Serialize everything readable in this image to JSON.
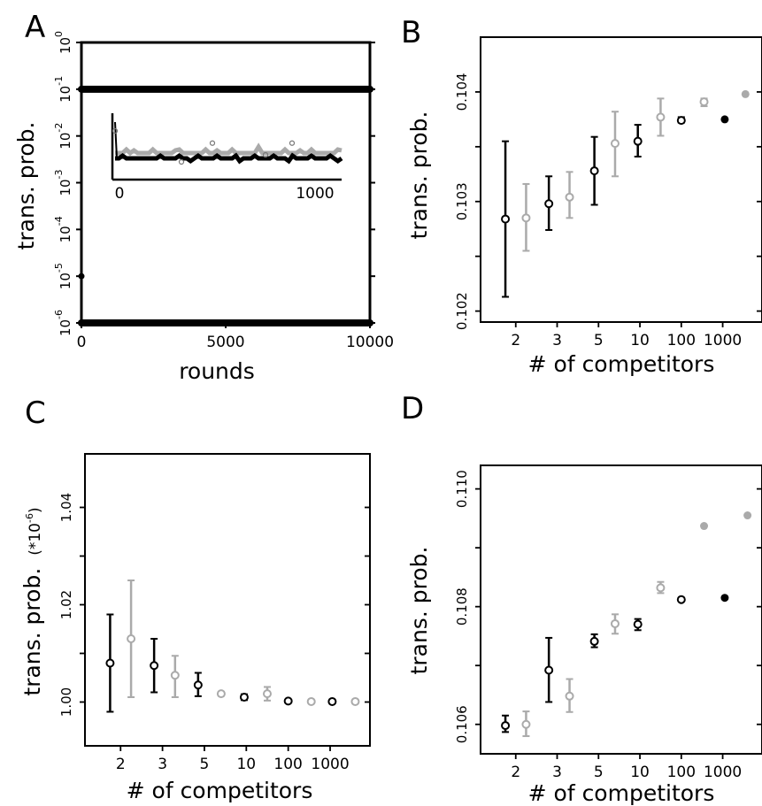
{
  "chart_data": [
    {
      "panel": "A",
      "type": "scatter",
      "xlabel": "rounds",
      "ylabel": "trans. prob.",
      "x_ticks": [
        "0",
        "5000",
        "10000"
      ],
      "xlim": [
        0,
        10000
      ],
      "y_scale": "log",
      "ylim": [
        1e-06,
        1
      ],
      "y_ticks": [
        {
          "base": "10",
          "exp": "0"
        },
        {
          "base": "10",
          "exp": "-1"
        },
        {
          "base": "10",
          "exp": "-2"
        },
        {
          "base": "10",
          "exp": "-3"
        },
        {
          "base": "10",
          "exp": "-4"
        },
        {
          "base": "10",
          "exp": "-5"
        },
        {
          "base": "10",
          "exp": "-6"
        }
      ],
      "series": [
        {
          "color": "#000000",
          "y_level": 0.1,
          "x_range": [
            0,
            10000
          ]
        },
        {
          "color": "#000000",
          "y_level": 1e-06,
          "x_range": [
            0,
            10000
          ]
        },
        {
          "color": "#000000",
          "points": [
            [
              0,
              1e-05
            ]
          ]
        }
      ],
      "inset": {
        "x_ticks": [
          "0",
          "1000"
        ],
        "xlim": [
          0,
          1000
        ],
        "gray_level": 0.4,
        "black_level": 0.32
      }
    },
    {
      "panel": "B",
      "type": "scatter",
      "xlabel": "# of competitors",
      "ylabel": "trans. prob.",
      "categories": [
        "",
        "2",
        "3",
        "",
        "5",
        "10",
        "",
        "100",
        "1000"
      ],
      "x_positions": [
        1.75,
        2.25,
        2.75,
        3.25,
        3.75,
        4.25,
        4.75,
        5.25,
        5.75
      ],
      "x_ticks": [
        {
          "pos": 2,
          "label": "2"
        },
        {
          "pos": 3,
          "label": "3"
        },
        {
          "pos": 4,
          "label": "5"
        },
        {
          "pos": 5,
          "label": "10"
        },
        {
          "pos": 6,
          "label": "100"
        },
        {
          "pos": 7,
          "label": "1000"
        }
      ],
      "ylim": [
        0.1019,
        0.1045
      ],
      "y_ticks": [
        "0.102",
        "0.103",
        "0.104"
      ],
      "y_tick_values": [
        0.102,
        0.1025,
        0.103,
        0.1035,
        0.104
      ],
      "points": [
        {
          "x": 1.8,
          "y": 0.10284,
          "lo": 0.10213,
          "hi": 0.10355,
          "color": "#000000",
          "open": true
        },
        {
          "x": 2.3,
          "y": 0.10285,
          "lo": 0.10255,
          "hi": 0.10316,
          "color": "#aaaaaa",
          "open": true
        },
        {
          "x": 2.85,
          "y": 0.10298,
          "lo": 0.10274,
          "hi": 0.10323,
          "color": "#000000",
          "open": true
        },
        {
          "x": 3.35,
          "y": 0.10304,
          "lo": 0.10285,
          "hi": 0.10327,
          "color": "#aaaaaa",
          "open": true
        },
        {
          "x": 3.95,
          "y": 0.10328,
          "lo": 0.10297,
          "hi": 0.10359,
          "color": "#000000",
          "open": true
        },
        {
          "x": 4.45,
          "y": 0.10353,
          "lo": 0.10323,
          "hi": 0.10382,
          "color": "#aaaaaa",
          "open": true
        },
        {
          "x": 5.0,
          "y": 0.10355,
          "lo": 0.10341,
          "hi": 0.1037,
          "color": "#000000",
          "open": true
        },
        {
          "x": 5.55,
          "y": 0.10377,
          "lo": 0.1036,
          "hi": 0.10394,
          "color": "#aaaaaa",
          "open": true
        },
        {
          "x": 6.05,
          "y": 0.10374,
          "lo": 0.10372,
          "hi": 0.10377,
          "color": "#000000",
          "open": true
        },
        {
          "x": 6.6,
          "y": 0.10391,
          "lo": 0.10387,
          "hi": 0.10394,
          "color": "#aaaaaa",
          "open": true
        },
        {
          "x": 7.1,
          "y": 0.10375,
          "lo": 0.10375,
          "hi": 0.10375,
          "color": "#000000",
          "open": false
        },
        {
          "x": 7.6,
          "y": 0.10398,
          "lo": 0.10398,
          "hi": 0.10398,
          "color": "#aaaaaa",
          "open": false
        }
      ]
    },
    {
      "panel": "C",
      "type": "scatter",
      "xlabel": "# of competitors",
      "ylabel": "trans. prob.",
      "ylabel_suffix": {
        "open": "(",
        "mult": "*10",
        "exp": "-6",
        "close": ")"
      },
      "x_ticks": [
        {
          "pos": 2,
          "label": "2"
        },
        {
          "pos": 3,
          "label": "3"
        },
        {
          "pos": 4,
          "label": "5"
        },
        {
          "pos": 5,
          "label": "10"
        },
        {
          "pos": 6,
          "label": "100"
        },
        {
          "pos": 7,
          "label": "1000"
        }
      ],
      "ylim": [
        0.991,
        1.051
      ],
      "y_ticks": [
        "1.00",
        "1.02",
        "1.04"
      ],
      "y_tick_values": [
        1.0,
        1.01,
        1.02,
        1.03,
        1.04
      ],
      "points": [
        {
          "x": 1.8,
          "y": 1.008,
          "lo": 0.998,
          "hi": 1.018,
          "color": "#000000",
          "open": true
        },
        {
          "x": 2.3,
          "y": 1.013,
          "lo": 1.001,
          "hi": 1.025,
          "color": "#aaaaaa",
          "open": true
        },
        {
          "x": 2.85,
          "y": 1.0075,
          "lo": 1.002,
          "hi": 1.013,
          "color": "#000000",
          "open": true
        },
        {
          "x": 3.35,
          "y": 1.0055,
          "lo": 1.001,
          "hi": 1.0095,
          "color": "#aaaaaa",
          "open": true
        },
        {
          "x": 3.9,
          "y": 1.0035,
          "lo": 1.0012,
          "hi": 1.006,
          "color": "#000000",
          "open": true
        },
        {
          "x": 4.45,
          "y": 1.0017,
          "lo": 1.0013,
          "hi": 1.0021,
          "color": "#aaaaaa",
          "open": true
        },
        {
          "x": 5.0,
          "y": 1.001,
          "lo": 1.0004,
          "hi": 1.0016,
          "color": "#000000",
          "open": true
        },
        {
          "x": 5.55,
          "y": 1.0017,
          "lo": 1.0003,
          "hi": 1.0031,
          "color": "#aaaaaa",
          "open": true
        },
        {
          "x": 6.05,
          "y": 1.0002,
          "lo": 1.0002,
          "hi": 1.0002,
          "color": "#000000",
          "open": true
        },
        {
          "x": 6.6,
          "y": 1.0001,
          "lo": 1.0001,
          "hi": 1.0001,
          "color": "#aaaaaa",
          "open": true
        },
        {
          "x": 7.1,
          "y": 1.0001,
          "lo": 1.0001,
          "hi": 1.0001,
          "color": "#000000",
          "open": true
        },
        {
          "x": 7.65,
          "y": 1.0001,
          "lo": 1.0001,
          "hi": 1.0001,
          "color": "#aaaaaa",
          "open": true
        }
      ]
    },
    {
      "panel": "D",
      "type": "scatter",
      "xlabel": "# of competitors",
      "ylabel": "trans. prob.",
      "x_ticks": [
        {
          "pos": 2,
          "label": "2"
        },
        {
          "pos": 3,
          "label": "3"
        },
        {
          "pos": 4,
          "label": "5"
        },
        {
          "pos": 5,
          "label": "10"
        },
        {
          "pos": 6,
          "label": "100"
        },
        {
          "pos": 7,
          "label": "1000"
        }
      ],
      "ylim": [
        0.1055,
        0.1104
      ],
      "y_ticks": [
        "0.106",
        "0.108",
        "0.110"
      ],
      "y_tick_values": [
        0.106,
        0.107,
        0.108,
        0.109,
        0.11
      ],
      "points": [
        {
          "x": 1.8,
          "y": 0.10598,
          "lo": 0.10587,
          "hi": 0.10615,
          "color": "#000000",
          "open": true
        },
        {
          "x": 2.3,
          "y": 0.106,
          "lo": 0.1058,
          "hi": 0.10622,
          "color": "#aaaaaa",
          "open": true
        },
        {
          "x": 2.85,
          "y": 0.10692,
          "lo": 0.10638,
          "hi": 0.10747,
          "color": "#000000",
          "open": true
        },
        {
          "x": 3.35,
          "y": 0.10648,
          "lo": 0.10621,
          "hi": 0.10677,
          "color": "#aaaaaa",
          "open": true
        },
        {
          "x": 3.95,
          "y": 0.10741,
          "lo": 0.10731,
          "hi": 0.10753,
          "color": "#000000",
          "open": true
        },
        {
          "x": 4.45,
          "y": 0.10771,
          "lo": 0.10754,
          "hi": 0.10787,
          "color": "#aaaaaa",
          "open": true
        },
        {
          "x": 5.0,
          "y": 0.1077,
          "lo": 0.1076,
          "hi": 0.10779,
          "color": "#000000",
          "open": true
        },
        {
          "x": 5.55,
          "y": 0.10832,
          "lo": 0.10823,
          "hi": 0.10842,
          "color": "#aaaaaa",
          "open": true
        },
        {
          "x": 6.05,
          "y": 0.10812,
          "lo": 0.10812,
          "hi": 0.10812,
          "color": "#000000",
          "open": true
        },
        {
          "x": 6.6,
          "y": 0.10937,
          "lo": 0.10937,
          "hi": 0.10937,
          "color": "#aaaaaa",
          "open": false
        },
        {
          "x": 7.1,
          "y": 0.10815,
          "lo": 0.10815,
          "hi": 0.10815,
          "color": "#000000",
          "open": false
        },
        {
          "x": 7.65,
          "y": 0.10955,
          "lo": 0.10955,
          "hi": 0.10955,
          "color": "#aaaaaa",
          "open": false
        }
      ]
    }
  ]
}
